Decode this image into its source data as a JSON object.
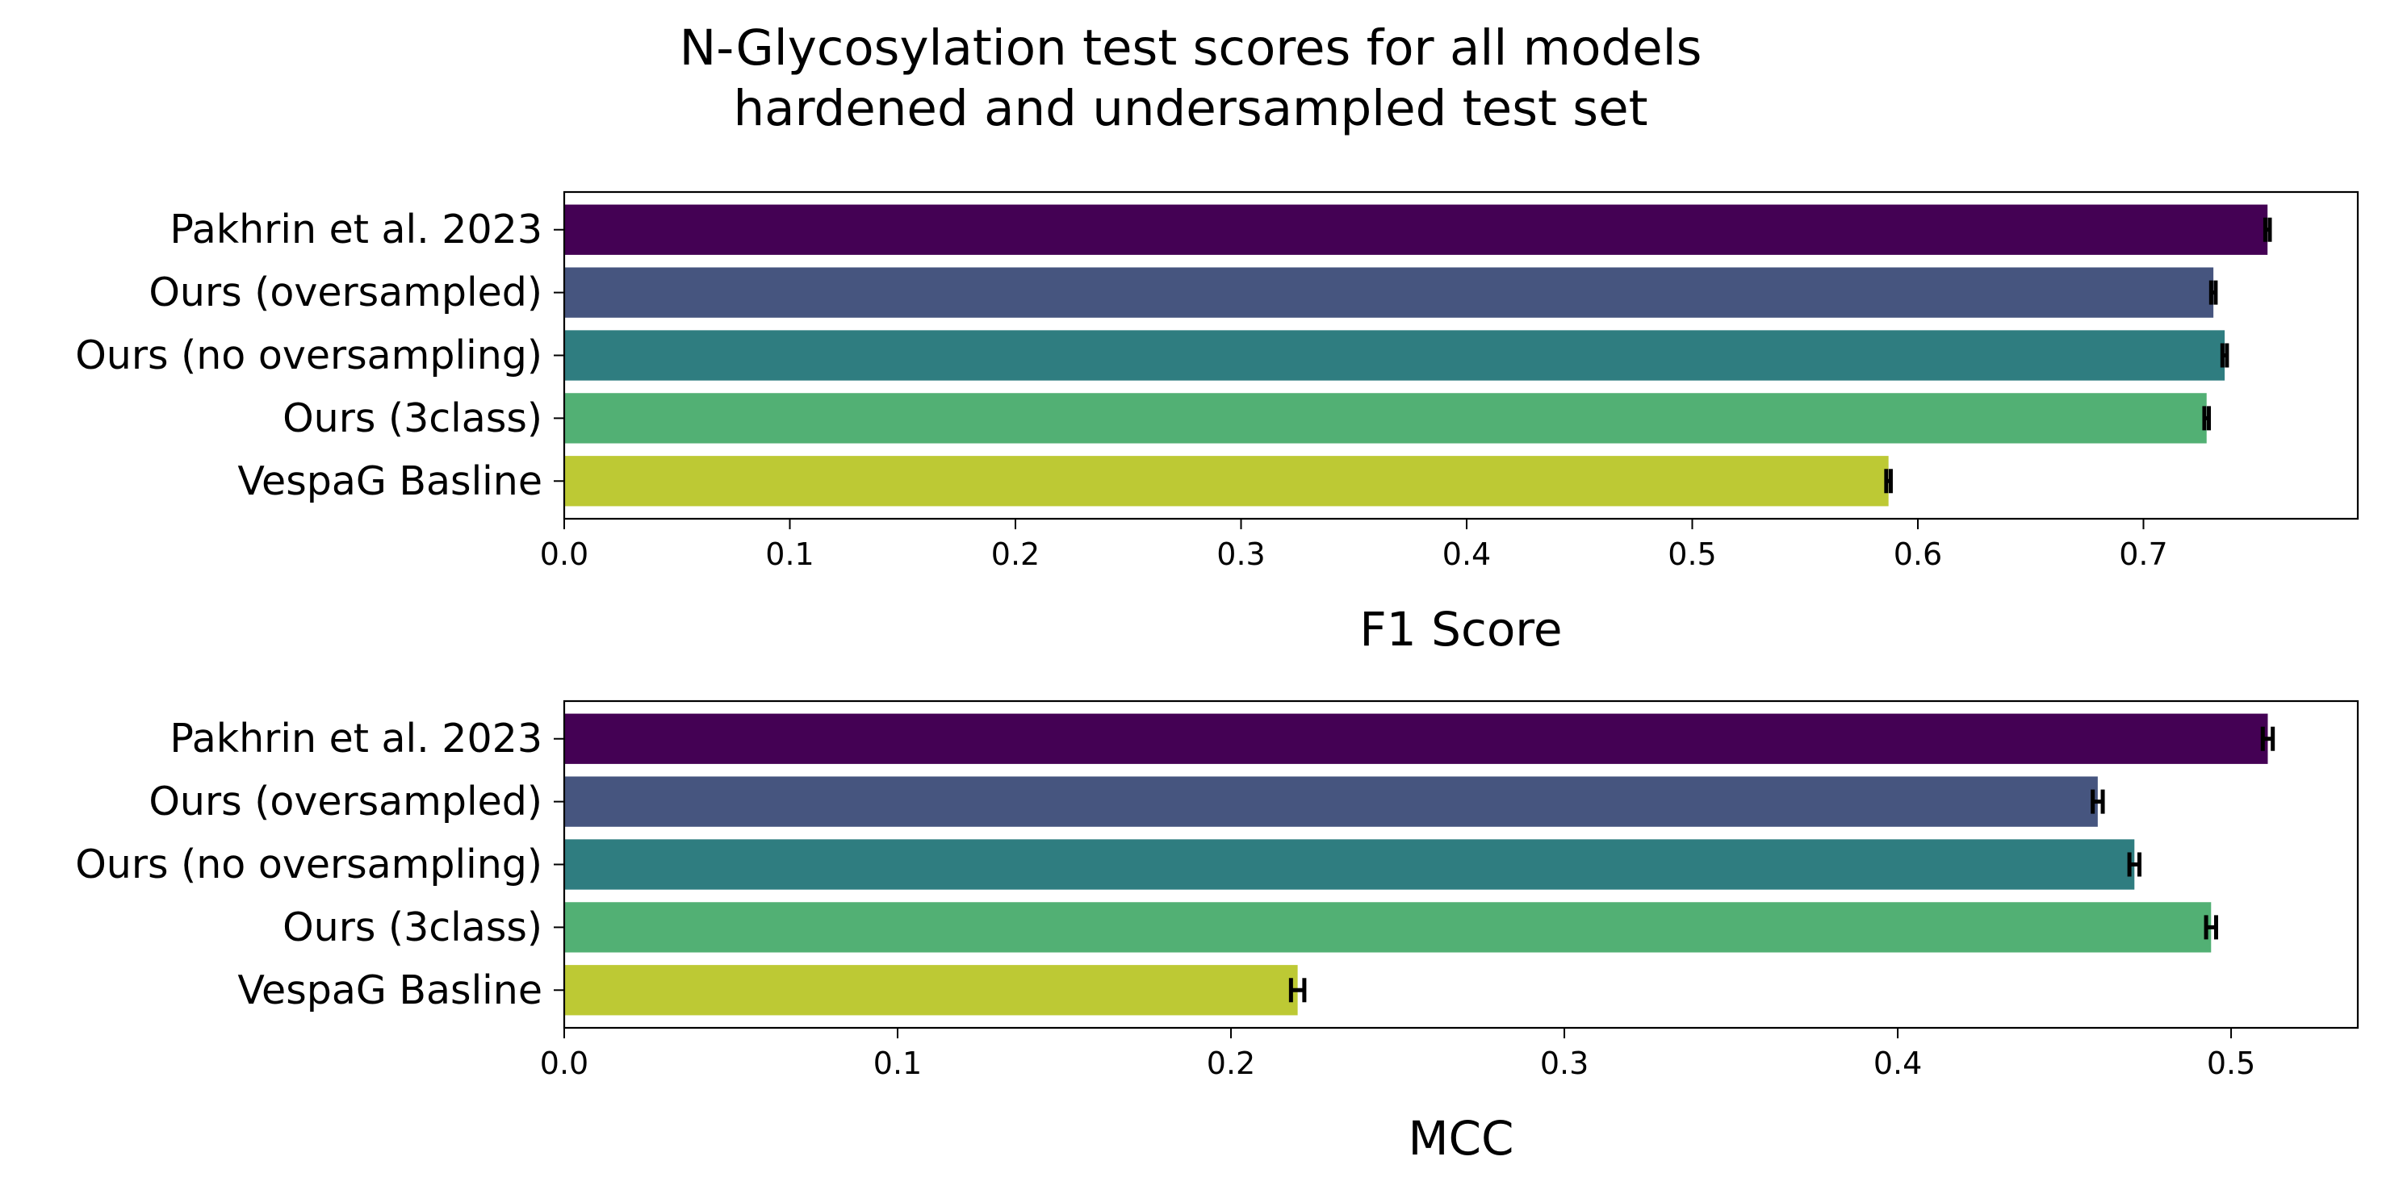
{
  "title": [
    "N-Glycosylation test scores for all models",
    "hardened and undersampled test set"
  ],
  "colors": [
    "#440154",
    "#46557f",
    "#2f7d80",
    "#52b074",
    "#bdc934"
  ],
  "errorbar_color": "#000000",
  "chart_data": [
    {
      "type": "bar",
      "orientation": "horizontal",
      "categories": [
        "Pakhrin et al. 2023",
        "Ours (oversampled)",
        "Ours (no oversampling)",
        "Ours (3class)",
        "VespaG Basline"
      ],
      "values": [
        0.755,
        0.731,
        0.736,
        0.728,
        0.587
      ],
      "errors": [
        0.001,
        0.001,
        0.001,
        0.001,
        0.001
      ],
      "xlabel": "F1 Score",
      "ylabel": "",
      "xlim": [
        0,
        0.795
      ],
      "ticks": [
        0.0,
        0.1,
        0.2,
        0.3,
        0.4,
        0.5,
        0.6,
        0.7
      ],
      "tick_labels": [
        "0.0",
        "0.1",
        "0.2",
        "0.3",
        "0.4",
        "0.5",
        "0.6",
        "0.7"
      ],
      "grid": false,
      "legend": "none"
    },
    {
      "type": "bar",
      "orientation": "horizontal",
      "categories": [
        "Pakhrin et al. 2023",
        "Ours (oversampled)",
        "Ours (no oversampling)",
        "Ours (3class)",
        "VespaG Basline"
      ],
      "values": [
        0.511,
        0.46,
        0.471,
        0.494,
        0.22
      ],
      "errors": [
        0.0015,
        0.0015,
        0.0015,
        0.0015,
        0.002
      ],
      "xlabel": "MCC",
      "ylabel": "",
      "xlim": [
        0,
        0.538
      ],
      "ticks": [
        0.0,
        0.1,
        0.2,
        0.3,
        0.4,
        0.5
      ],
      "tick_labels": [
        "0.0",
        "0.1",
        "0.2",
        "0.3",
        "0.4",
        "0.5"
      ],
      "grid": false,
      "legend": "none"
    }
  ]
}
